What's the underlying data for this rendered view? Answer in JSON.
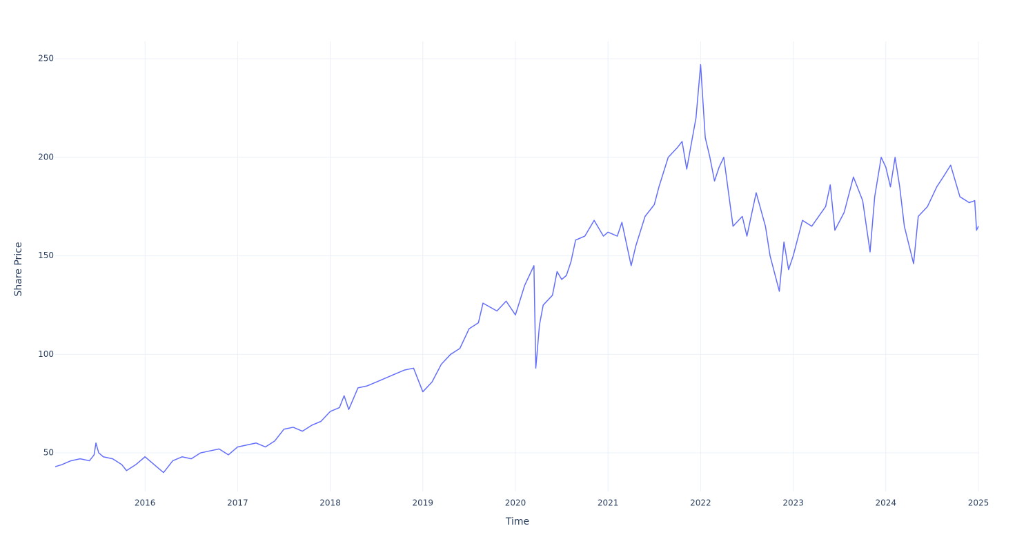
{
  "chart_data": {
    "type": "line",
    "x_label": "Time",
    "y_label": "Share Price",
    "x": [
      2015.03,
      2015.1,
      2015.2,
      2015.3,
      2015.4,
      2015.45,
      2015.47,
      2015.5,
      2015.55,
      2015.65,
      2015.75,
      2015.8,
      2015.9,
      2016.0,
      2016.1,
      2016.15,
      2016.2,
      2016.3,
      2016.4,
      2016.5,
      2016.6,
      2016.7,
      2016.8,
      2016.9,
      2017.0,
      2017.1,
      2017.2,
      2017.3,
      2017.4,
      2017.5,
      2017.6,
      2017.7,
      2017.8,
      2017.9,
      2018.0,
      2018.1,
      2018.15,
      2018.2,
      2018.3,
      2018.4,
      2018.5,
      2018.6,
      2018.7,
      2018.8,
      2018.9,
      2019.0,
      2019.1,
      2019.2,
      2019.3,
      2019.4,
      2019.5,
      2019.6,
      2019.65,
      2019.8,
      2019.9,
      2020.0,
      2020.1,
      2020.15,
      2020.2,
      2020.22,
      2020.26,
      2020.3,
      2020.4,
      2020.45,
      2020.5,
      2020.55,
      2020.6,
      2020.65,
      2020.75,
      2020.85,
      2020.95,
      2021.0,
      2021.1,
      2021.15,
      2021.25,
      2021.3,
      2021.4,
      2021.5,
      2021.55,
      2021.65,
      2021.75,
      2021.8,
      2021.85,
      2021.95,
      2022.0,
      2022.05,
      2022.1,
      2022.15,
      2022.2,
      2022.25,
      2022.35,
      2022.45,
      2022.5,
      2022.6,
      2022.7,
      2022.75,
      2022.85,
      2022.9,
      2022.95,
      2023.0,
      2023.1,
      2023.2,
      2023.35,
      2023.4,
      2023.45,
      2023.55,
      2023.65,
      2023.75,
      2023.83,
      2023.88,
      2023.95,
      2024.0,
      2024.05,
      2024.1,
      2024.15,
      2024.2,
      2024.3,
      2024.35,
      2024.45,
      2024.55,
      2024.62,
      2024.7,
      2024.8,
      2024.9,
      2024.96,
      2024.98,
      2025.0
    ],
    "series": [
      {
        "name": "Share Price",
        "color": "#636efa",
        "values": [
          43,
          44,
          46,
          47,
          46,
          49,
          55,
          50,
          48,
          47,
          44,
          41,
          44,
          48,
          44,
          42,
          40,
          46,
          48,
          47,
          50,
          51,
          52,
          49,
          53,
          54,
          55,
          53,
          56,
          62,
          63,
          61,
          64,
          66,
          71,
          73,
          79,
          72,
          83,
          84,
          86,
          88,
          90,
          92,
          93,
          81,
          86,
          95,
          100,
          103,
          113,
          116,
          126,
          122,
          127,
          120,
          135,
          140,
          145,
          93,
          115,
          125,
          130,
          142,
          138,
          140,
          147,
          158,
          160,
          168,
          160,
          162,
          160,
          167,
          145,
          155,
          170,
          176,
          185,
          200,
          205,
          208,
          194,
          220,
          247,
          210,
          200,
          188,
          195,
          200,
          165,
          170,
          160,
          182,
          165,
          150,
          132,
          157,
          143,
          150,
          168,
          165,
          175,
          186,
          163,
          172,
          190,
          178,
          152,
          180,
          200,
          195,
          185,
          200,
          185,
          165,
          146,
          170,
          175,
          185,
          190,
          196,
          180,
          177,
          178,
          163,
          165
        ]
      }
    ],
    "xlim": [
      2015.03,
      2025.0
    ],
    "xticks": [
      2016,
      2017,
      2018,
      2019,
      2020,
      2021,
      2022,
      2023,
      2024,
      2025
    ],
    "ylim": [
      30.4,
      258.8
    ],
    "yticks": [
      50,
      100,
      150,
      200,
      250
    ],
    "grid": true
  }
}
